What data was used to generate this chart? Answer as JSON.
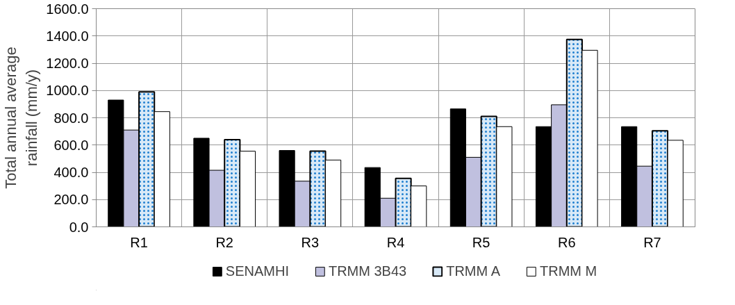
{
  "chart_data": {
    "type": "bar",
    "ylabel": "Total annual average rainfall (mm/y)",
    "categories": [
      "R1",
      "R2",
      "R3",
      "R4",
      "R5",
      "R6",
      "R7"
    ],
    "series": [
      {
        "name": "SENAMHI",
        "color": "#000000",
        "values": [
          930,
          650,
          560,
          435,
          865,
          735,
          735
        ]
      },
      {
        "name": "TRMM 3B43",
        "color": "#c0c0df",
        "values": [
          710,
          415,
          335,
          210,
          510,
          895,
          445
        ]
      },
      {
        "name": "TRMM A",
        "color": "#d8e9f7",
        "values": [
          990,
          640,
          555,
          355,
          810,
          1375,
          705
        ]
      },
      {
        "name": "TRMM M",
        "color": "#ffffff",
        "values": [
          845,
          555,
          490,
          300,
          735,
          1295,
          635
        ]
      }
    ],
    "ylim": [
      0,
      1600
    ],
    "yticks": [
      {
        "value": 0,
        "label": "0.0"
      },
      {
        "value": 200,
        "label": "200.0"
      },
      {
        "value": 400,
        "label": "400.0"
      },
      {
        "value": 600,
        "label": "600.0"
      },
      {
        "value": 800,
        "label": "800.0"
      },
      {
        "value": 1000,
        "label": "1000.0"
      },
      {
        "value": 1200,
        "label": "1200.0"
      },
      {
        "value": 1400,
        "label": "1400.0"
      },
      {
        "value": 1600,
        "label": "1600.0"
      }
    ],
    "grid": true,
    "legend": "bottom"
  }
}
